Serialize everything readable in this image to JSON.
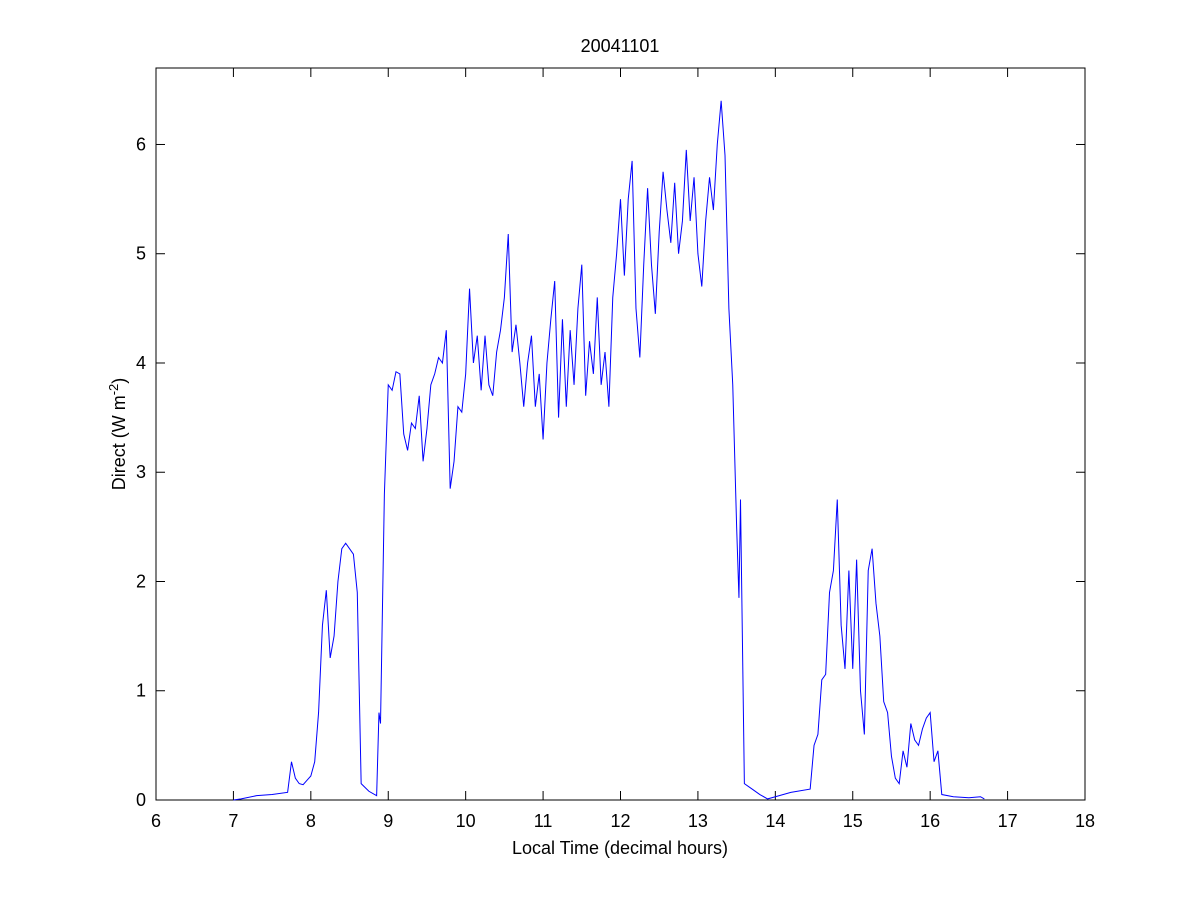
{
  "chart_data": {
    "type": "line",
    "title": "20041101",
    "xlabel": "Local Time (decimal hours)",
    "ylabel": {
      "text": "Direct (W m",
      "superscript": "-2",
      "suffix": ")"
    },
    "color": "#0000ff",
    "xlim": [
      6,
      18
    ],
    "xticks": [
      6,
      7,
      8,
      9,
      10,
      11,
      12,
      13,
      14,
      15,
      16,
      17,
      18
    ],
    "ylim": [
      0,
      6.7
    ],
    "yticks": [
      0,
      1,
      2,
      3,
      4,
      5,
      6
    ],
    "x": [
      7.0,
      7.1,
      7.3,
      7.5,
      7.7,
      7.75,
      7.8,
      7.85,
      7.9,
      7.95,
      8.0,
      8.05,
      8.1,
      8.15,
      8.2,
      8.25,
      8.3,
      8.35,
      8.4,
      8.45,
      8.5,
      8.55,
      8.6,
      8.65,
      8.75,
      8.85,
      8.88,
      8.9,
      8.95,
      9.0,
      9.05,
      9.1,
      9.15,
      9.2,
      9.25,
      9.3,
      9.35,
      9.4,
      9.45,
      9.5,
      9.55,
      9.6,
      9.65,
      9.7,
      9.75,
      9.8,
      9.85,
      9.9,
      9.95,
      10.0,
      10.05,
      10.1,
      10.15,
      10.2,
      10.25,
      10.3,
      10.35,
      10.4,
      10.45,
      10.5,
      10.55,
      10.6,
      10.65,
      10.7,
      10.75,
      10.8,
      10.85,
      10.9,
      10.95,
      11.0,
      11.05,
      11.1,
      11.15,
      11.2,
      11.25,
      11.3,
      11.35,
      11.4,
      11.45,
      11.5,
      11.55,
      11.6,
      11.65,
      11.7,
      11.75,
      11.8,
      11.85,
      11.9,
      11.95,
      12.0,
      12.05,
      12.1,
      12.15,
      12.2,
      12.25,
      12.3,
      12.35,
      12.4,
      12.45,
      12.5,
      12.55,
      12.6,
      12.65,
      12.7,
      12.75,
      12.8,
      12.85,
      12.9,
      12.95,
      13.0,
      13.05,
      13.1,
      13.15,
      13.2,
      13.25,
      13.3,
      13.35,
      13.4,
      13.45,
      13.5,
      13.53,
      13.55,
      13.6,
      13.7,
      13.8,
      13.9,
      14.0,
      14.2,
      14.45,
      14.5,
      14.55,
      14.6,
      14.65,
      14.7,
      14.75,
      14.8,
      14.85,
      14.9,
      14.95,
      15.0,
      15.05,
      15.1,
      15.15,
      15.2,
      15.25,
      15.3,
      15.35,
      15.4,
      15.45,
      15.5,
      15.55,
      15.6,
      15.65,
      15.7,
      15.75,
      15.8,
      15.85,
      15.9,
      15.95,
      16.0,
      16.05,
      16.1,
      16.15,
      16.3,
      16.5,
      16.65,
      16.7
    ],
    "values": [
      0,
      0.01,
      0.04,
      0.05,
      0.07,
      0.35,
      0.2,
      0.15,
      0.14,
      0.18,
      0.22,
      0.35,
      0.8,
      1.6,
      1.92,
      1.3,
      1.5,
      2.0,
      2.3,
      2.35,
      2.3,
      2.25,
      1.9,
      0.15,
      0.08,
      0.04,
      0.8,
      0.7,
      2.8,
      3.8,
      3.75,
      3.92,
      3.9,
      3.35,
      3.2,
      3.45,
      3.4,
      3.7,
      3.1,
      3.4,
      3.8,
      3.9,
      4.05,
      4.0,
      4.3,
      2.85,
      3.1,
      3.6,
      3.55,
      3.9,
      4.68,
      4.0,
      4.25,
      3.75,
      4.25,
      3.8,
      3.7,
      4.1,
      4.3,
      4.6,
      5.18,
      4.1,
      4.35,
      4.0,
      3.6,
      4.0,
      4.25,
      3.6,
      3.9,
      3.3,
      4.0,
      4.4,
      4.75,
      3.5,
      4.4,
      3.6,
      4.3,
      3.8,
      4.5,
      4.9,
      3.7,
      4.2,
      3.9,
      4.6,
      3.8,
      4.1,
      3.6,
      4.6,
      5.0,
      5.5,
      4.8,
      5.5,
      5.85,
      4.5,
      4.05,
      4.9,
      5.6,
      4.9,
      4.45,
      5.2,
      5.75,
      5.4,
      5.1,
      5.65,
      5.0,
      5.3,
      5.95,
      5.3,
      5.7,
      5.0,
      4.7,
      5.3,
      5.7,
      5.4,
      6.0,
      6.4,
      5.9,
      4.5,
      3.8,
      2.5,
      1.85,
      2.75,
      0.15,
      0.1,
      0.05,
      0.01,
      0.03,
      0.07,
      0.1,
      0.5,
      0.6,
      1.1,
      1.15,
      1.9,
      2.1,
      2.75,
      1.6,
      1.2,
      2.1,
      1.2,
      2.2,
      1.0,
      0.6,
      2.1,
      2.3,
      1.8,
      1.5,
      0.9,
      0.8,
      0.4,
      0.2,
      0.15,
      0.45,
      0.3,
      0.7,
      0.55,
      0.5,
      0.65,
      0.75,
      0.8,
      0.35,
      0.45,
      0.05,
      0.03,
      0.02,
      0.03,
      0.01
    ]
  }
}
